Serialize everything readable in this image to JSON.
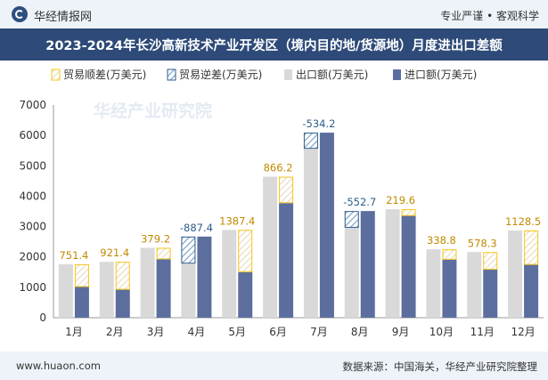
{
  "header": {
    "brand": "华经情报网",
    "slogan": "专业严谨 • 客观科学"
  },
  "footer": {
    "website": "www.huaon.com",
    "source": "数据来源：中国海关，华经产业研究院整理"
  },
  "colors": {
    "export": "#d9d9d9",
    "import": "#5b6e9e",
    "surplus_border": "#f5c518",
    "deficit_border": "#2e5d8c",
    "surplus_label": "#c08a00",
    "deficit_label": "#2e5d8c",
    "title_bg": "#2d4a78"
  },
  "icons": {
    "logo": "huajing-logo-icon",
    "surplus_legend": "surplus-swatch-icon",
    "deficit_legend": "deficit-swatch-icon",
    "export_legend": "export-swatch-icon",
    "import_legend": "import-swatch-icon"
  },
  "chart_data": {
    "type": "bar",
    "title": "2023-2024年长沙高新技术产业开发区（境内目的地/货源地）月度进出口差额",
    "categories": [
      "1月",
      "2月",
      "3月",
      "4月",
      "5月",
      "6月",
      "7月",
      "8月",
      "9月",
      "10月",
      "11月",
      "12月"
    ],
    "series": [
      {
        "name": "出口额(万美元)",
        "values": [
          1760,
          1840,
          2300,
          1780,
          2890,
          4640,
          5560,
          2960,
          3570,
          2250,
          2160,
          2870
        ]
      },
      {
        "name": "进口额(万美元)",
        "values": [
          1010,
          920,
          1920,
          2670,
          1500,
          3770,
          6090,
          3510,
          3350,
          1910,
          1580,
          1740
        ]
      }
    ],
    "balance": [
      751.4,
      921.4,
      379.2,
      -887.4,
      1387.4,
      866.2,
      -534.2,
      -552.7,
      219.6,
      338.8,
      578.3,
      1128.5
    ],
    "balance_labels": [
      "751.4",
      "921.4",
      "379.2",
      "-887.4",
      "1387.4",
      "866.2",
      "-534.2",
      "-552.7",
      "219.6",
      "338.8",
      "578.3",
      "1128.5"
    ],
    "legend": [
      "贸易顺差(万美元)",
      "贸易逆差(万美元)",
      "出口额(万美元)",
      "进口额(万美元)"
    ],
    "legend_position": "top-left",
    "ylim": [
      0,
      7000
    ],
    "yticks": [
      "0",
      "1000",
      "2000",
      "3000",
      "4000",
      "5000",
      "6000",
      "7000"
    ],
    "grid": false,
    "watermark": "华经产业研究院"
  }
}
